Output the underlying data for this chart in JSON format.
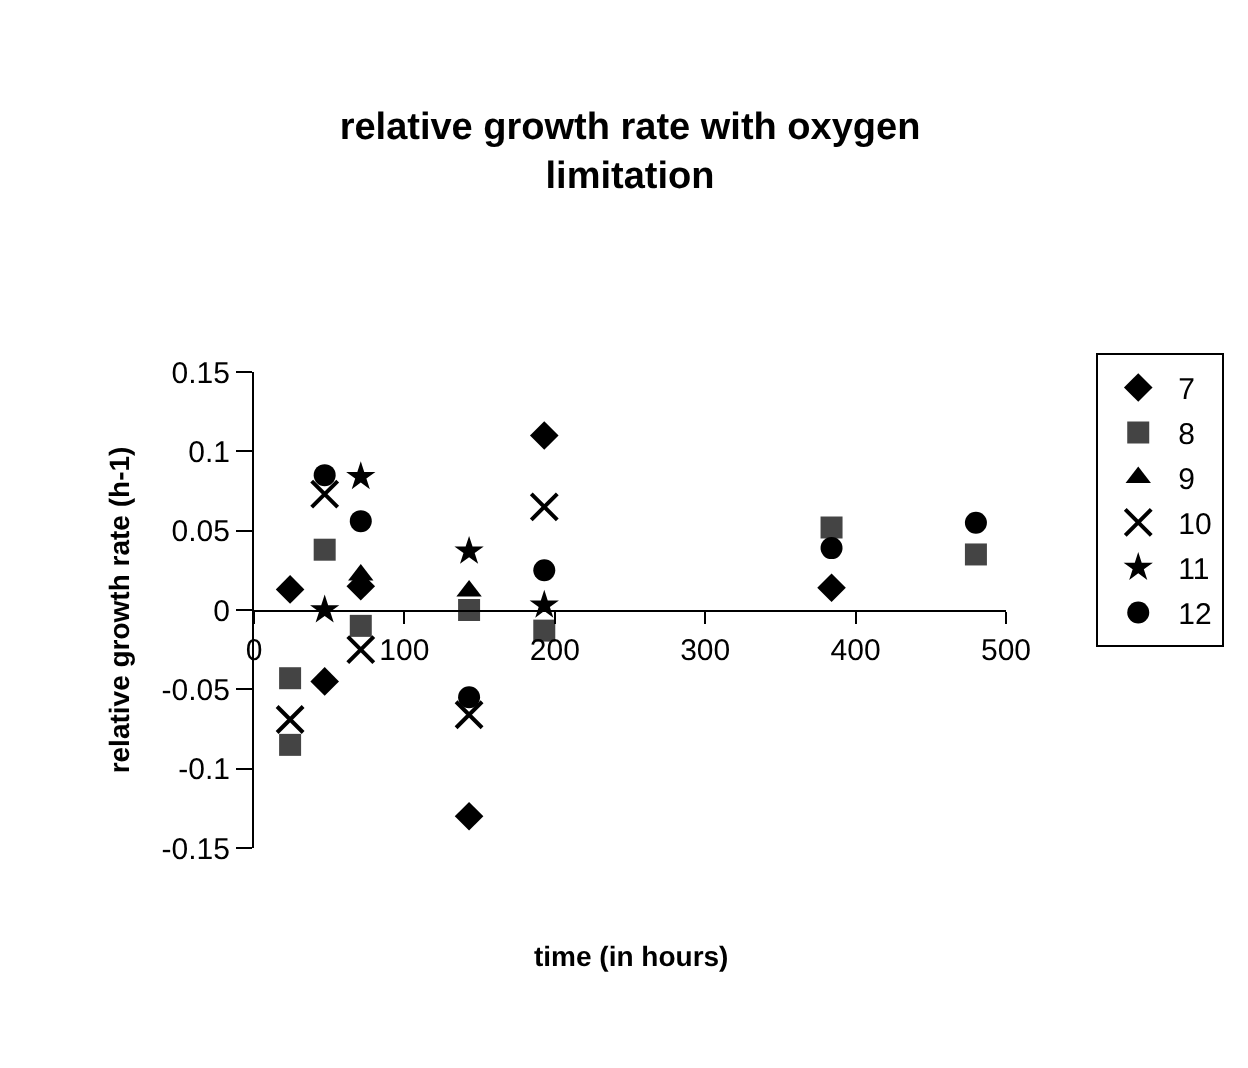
{
  "chart_data": {
    "type": "scatter",
    "title": "relative growth rate with oxygen limitation",
    "xlabel": "time (in hours)",
    "ylabel": "relative growth rate (h-1)",
    "xlim": [
      0,
      500
    ],
    "xticks": [
      0,
      100,
      200,
      300,
      400,
      500
    ],
    "ylim": [
      -0.15,
      0.15
    ],
    "yticks": [
      -0.15,
      -0.1,
      -0.05,
      0,
      0.05,
      0.1,
      0.15
    ],
    "grid": false,
    "legend": "right",
    "series": [
      {
        "name": "7",
        "color": "#000000",
        "marker": "diamond",
        "x": [
          24,
          47,
          71,
          143,
          193,
          384
        ],
        "values": [
          0.013,
          -0.045,
          0.015,
          -0.13,
          0.11,
          0.014
        ]
      },
      {
        "name": "8",
        "color": "#444444",
        "marker": "square",
        "x": [
          24,
          24,
          47,
          71,
          143,
          193,
          384,
          480
        ],
        "values": [
          -0.043,
          -0.085,
          0.038,
          -0.01,
          0,
          -0.013,
          0.052,
          0.035
        ]
      },
      {
        "name": "9",
        "color": "#000000",
        "marker": "triangle",
        "x": [
          71,
          143
        ],
        "values": [
          0.022,
          0.012
        ]
      },
      {
        "name": "10",
        "color": "#000000",
        "marker": "cross",
        "x": [
          24,
          47,
          71,
          143,
          193
        ],
        "values": [
          -0.069,
          0.073,
          -0.025,
          -0.066,
          0.065
        ]
      },
      {
        "name": "11",
        "color": "#000000",
        "marker": "star",
        "x": [
          47,
          71,
          143,
          193
        ],
        "values": [
          0,
          0.084,
          0.037,
          0.003
        ]
      },
      {
        "name": "12",
        "color": "#000000",
        "marker": "circle",
        "x": [
          47,
          71,
          143,
          193,
          384,
          480
        ],
        "values": [
          0.085,
          0.056,
          -0.055,
          0.025,
          0.039,
          0.055
        ]
      }
    ]
  }
}
